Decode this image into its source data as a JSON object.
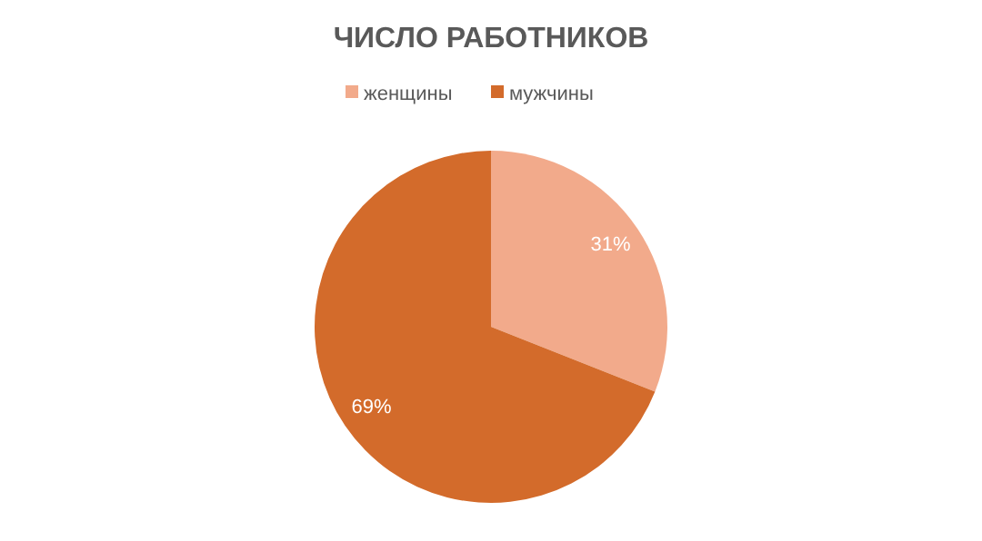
{
  "chart_data": {
    "type": "pie",
    "title": "ЧИСЛО РАБОТНИКОВ",
    "categories": [
      "женщины",
      "мужчины"
    ],
    "values": [
      31,
      69
    ],
    "colors": [
      "#f2aa8b",
      "#d36b2b"
    ],
    "value_labels": [
      "31%",
      "69%"
    ],
    "legend": "top"
  }
}
